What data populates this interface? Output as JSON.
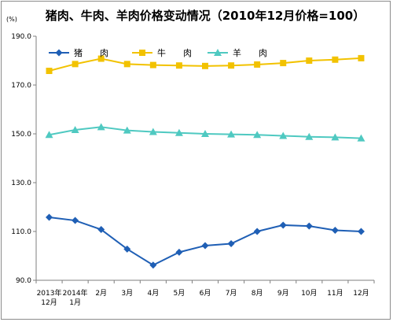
{
  "chart_data": {
    "type": "line",
    "title": "猪肉、牛肉、羊肉价格变动情况（2010年12月价格=100）",
    "yunit": "(%)",
    "ylim": [
      90.0,
      190.0
    ],
    "yticks": [
      "90.0",
      "110.0",
      "130.0",
      "150.0",
      "170.0",
      "190.0"
    ],
    "categories": [
      [
        "2013年",
        "12月"
      ],
      [
        "2014年",
        "1月"
      ],
      [
        "2月"
      ],
      [
        "3月"
      ],
      [
        "4月"
      ],
      [
        "5月"
      ],
      [
        "6月"
      ],
      [
        "7月"
      ],
      [
        "8月"
      ],
      [
        "9月"
      ],
      [
        "10月"
      ],
      [
        "11月"
      ],
      [
        "12月"
      ]
    ],
    "legend_position": "top",
    "grid": false,
    "series": [
      {
        "name": "猪　　肉",
        "color": "#1f5fb5",
        "marker": "diamond",
        "values": [
          115.8,
          114.5,
          110.8,
          102.8,
          96.2,
          101.5,
          104.2,
          105.0,
          110.0,
          112.6,
          112.2,
          110.5,
          110.0
        ]
      },
      {
        "name": "牛　　肉",
        "color": "#f2c200",
        "marker": "square",
        "values": [
          175.8,
          178.6,
          180.8,
          178.6,
          178.2,
          178.0,
          177.8,
          178.0,
          178.4,
          179.0,
          180.0,
          180.4,
          181.0
        ]
      },
      {
        "name": "羊　　肉",
        "color": "#4fc9c1",
        "marker": "triangle",
        "values": [
          149.6,
          151.6,
          152.8,
          151.4,
          150.8,
          150.4,
          150.0,
          149.8,
          149.6,
          149.2,
          148.8,
          148.6,
          148.2
        ]
      }
    ]
  }
}
